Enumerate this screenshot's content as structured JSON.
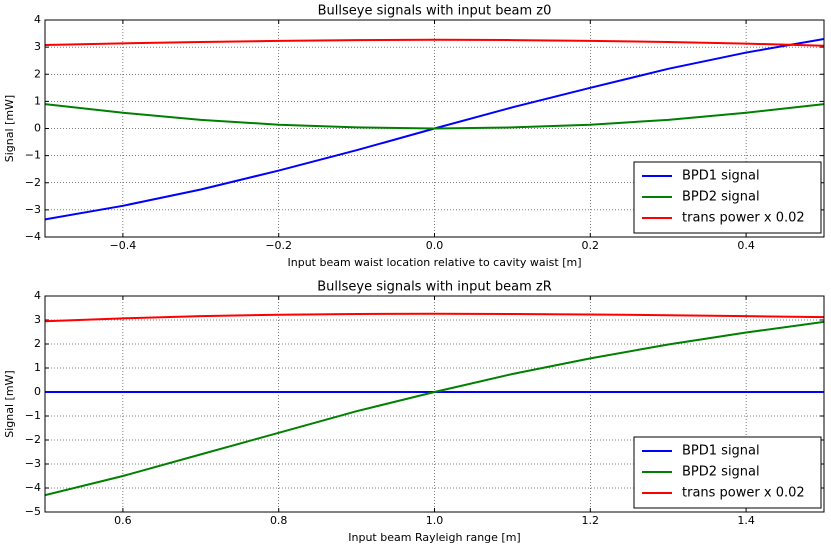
{
  "chart_data": [
    {
      "type": "line",
      "title": "Bullseye signals with input beam z0",
      "x_label": "Input beam waist location relative to cavity waist [m]",
      "y_label": "Signal [mW]",
      "x": [
        -0.5,
        -0.4,
        -0.3,
        -0.2,
        -0.1,
        0,
        0.1,
        0.2,
        0.3,
        0.4,
        0.5
      ],
      "series": [
        {
          "name": "BPD1 signal",
          "color": "#0000ff",
          "values": [
            -3.35,
            -2.85,
            -2.25,
            -1.55,
            -0.8,
            0,
            0.78,
            1.5,
            2.2,
            2.8,
            3.3
          ]
        },
        {
          "name": "BPD2 signal",
          "color": "#008000",
          "values": [
            0.9,
            0.58,
            0.32,
            0.14,
            0.04,
            0,
            0.04,
            0.14,
            0.32,
            0.58,
            0.9
          ]
        },
        {
          "name": "trans power x 0.02",
          "color": "#ff0000",
          "values": [
            3.08,
            3.14,
            3.19,
            3.23,
            3.26,
            3.27,
            3.26,
            3.23,
            3.19,
            3.13,
            3.05
          ]
        }
      ],
      "xlim": [
        -0.5,
        0.5
      ],
      "xticks": [
        {
          "value": -0.4,
          "label": "−0.4"
        },
        {
          "value": -0.2,
          "label": "−0.2"
        },
        {
          "value": 0,
          "label": "0.0"
        },
        0.2,
        0.4
      ],
      "ylim": [
        -4,
        4
      ],
      "yticks": [
        {
          "value": -4,
          "label": "−4"
        },
        {
          "value": -3,
          "label": "−3"
        },
        {
          "value": -2,
          "label": "−2"
        },
        {
          "value": -1,
          "label": "−1"
        },
        0,
        1,
        2,
        3,
        4
      ],
      "grid": true,
      "legend": "lower right"
    },
    {
      "type": "line",
      "title": "Bullseye signals with input beam zR",
      "x_label": "Input beam Rayleigh range [m]",
      "y_label": "Signal [mW]",
      "x": [
        0.5,
        0.6,
        0.7,
        0.8,
        0.9,
        1.0,
        1.1,
        1.2,
        1.3,
        1.4,
        1.5
      ],
      "series": [
        {
          "name": "BPD1 signal",
          "color": "#0000ff",
          "values": [
            0,
            0,
            0,
            0,
            0,
            0,
            0,
            0,
            0,
            0,
            0
          ]
        },
        {
          "name": "BPD2 signal",
          "color": "#008000",
          "values": [
            -4.3,
            -3.5,
            -2.6,
            -1.7,
            -0.8,
            0,
            0.75,
            1.4,
            1.98,
            2.48,
            2.92
          ]
        },
        {
          "name": "trans power x 0.02",
          "color": "#ff0000",
          "values": [
            2.95,
            3.07,
            3.16,
            3.22,
            3.25,
            3.26,
            3.25,
            3.23,
            3.2,
            3.16,
            3.12
          ]
        }
      ],
      "xlim": [
        0.5,
        1.5
      ],
      "xticks": [
        0.6,
        0.8,
        {
          "value": 1,
          "label": "1.0"
        },
        1.2,
        1.4
      ],
      "ylim": [
        -5,
        4
      ],
      "yticks": [
        {
          "value": -5,
          "label": "−5"
        },
        {
          "value": -4,
          "label": "−4"
        },
        {
          "value": -3,
          "label": "−3"
        },
        {
          "value": -2,
          "label": "−2"
        },
        {
          "value": -1,
          "label": "−1"
        },
        0,
        1,
        2,
        3,
        4
      ],
      "grid": true,
      "legend": "lower right"
    }
  ]
}
